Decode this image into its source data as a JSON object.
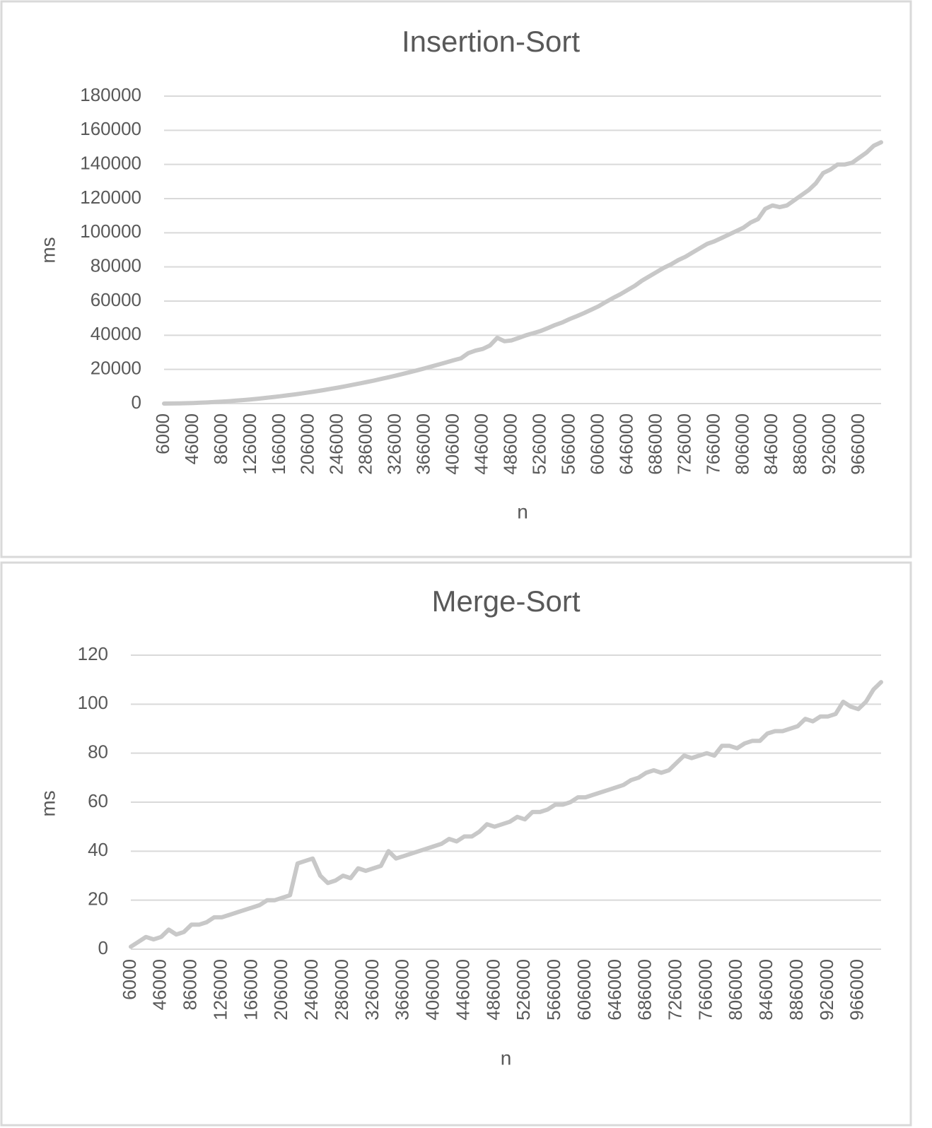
{
  "chart_data": [
    {
      "type": "line",
      "title": "Insertion-Sort",
      "x_label": "n",
      "y_label": "ms",
      "categories": [
        "6000",
        null,
        null,
        null,
        "46000",
        null,
        null,
        null,
        "86000",
        null,
        null,
        null,
        "126000",
        null,
        null,
        null,
        "166000",
        null,
        null,
        null,
        "206000",
        null,
        null,
        null,
        "246000",
        null,
        null,
        null,
        "286000",
        null,
        null,
        null,
        "326000",
        null,
        null,
        null,
        "366000",
        null,
        null,
        null,
        "406000",
        null,
        null,
        null,
        "446000",
        null,
        null,
        null,
        "486000",
        null,
        null,
        null,
        "526000",
        null,
        null,
        null,
        "566000",
        null,
        null,
        null,
        "606000",
        null,
        null,
        null,
        "646000",
        null,
        null,
        null,
        "686000",
        null,
        null,
        null,
        "726000",
        null,
        null,
        null,
        "766000",
        null,
        null,
        null,
        "806000",
        null,
        null,
        null,
        "846000",
        null,
        null,
        null,
        "886000",
        null,
        null,
        null,
        "926000",
        null,
        null,
        null,
        "966000",
        null,
        null,
        null
      ],
      "values": [
        0,
        40,
        100,
        200,
        330,
        480,
        670,
        890,
        1140,
        1420,
        1730,
        2070,
        2450,
        2850,
        3290,
        3750,
        4250,
        4780,
        5330,
        5920,
        6540,
        7190,
        7880,
        8590,
        9330,
        10110,
        10910,
        11750,
        12610,
        13510,
        14440,
        15400,
        16390,
        17410,
        18460,
        19540,
        20660,
        21800,
        22980,
        24180,
        25400,
        26500,
        29500,
        31000,
        32000,
        34000,
        38500,
        36500,
        37000,
        38500,
        40000,
        41200,
        42500,
        44200,
        46000,
        47500,
        49500,
        51200,
        53000,
        55000,
        57000,
        59500,
        61800,
        64000,
        66500,
        69000,
        72000,
        74500,
        77000,
        79500,
        81500,
        84000,
        86000,
        88500,
        91000,
        93500,
        95000,
        97000,
        99000,
        101000,
        103000,
        106000,
        108000,
        114000,
        116000,
        115000,
        116000,
        119000,
        122000,
        125000,
        129000,
        135000,
        137000,
        140000,
        140000,
        141000,
        144000,
        147000,
        151000,
        153000
      ],
      "color": "#c8c8c8",
      "ylim": [
        0,
        180000
      ],
      "yticks": [
        0,
        20000,
        40000,
        60000,
        80000,
        100000,
        120000,
        140000,
        160000,
        180000
      ],
      "grid": true
    },
    {
      "type": "line",
      "title": "Merge-Sort",
      "x_label": "n",
      "y_label": "ms",
      "categories": [
        "6000",
        null,
        null,
        null,
        "46000",
        null,
        null,
        null,
        "86000",
        null,
        null,
        null,
        "126000",
        null,
        null,
        null,
        "166000",
        null,
        null,
        null,
        "206000",
        null,
        null,
        null,
        "246000",
        null,
        null,
        null,
        "286000",
        null,
        null,
        null,
        "326000",
        null,
        null,
        null,
        "366000",
        null,
        null,
        null,
        "406000",
        null,
        null,
        null,
        "446000",
        null,
        null,
        null,
        "486000",
        null,
        null,
        null,
        "526000",
        null,
        null,
        null,
        "566000",
        null,
        null,
        null,
        "606000",
        null,
        null,
        null,
        "646000",
        null,
        null,
        null,
        "686000",
        null,
        null,
        null,
        "726000",
        null,
        null,
        null,
        "766000",
        null,
        null,
        null,
        "806000",
        null,
        null,
        null,
        "846000",
        null,
        null,
        null,
        "886000",
        null,
        null,
        null,
        "926000",
        null,
        null,
        null,
        "966000",
        null,
        null,
        null
      ],
      "values": [
        1,
        3,
        5,
        4,
        5,
        8,
        6,
        7,
        10,
        10,
        11,
        13,
        13,
        14,
        15,
        16,
        17,
        18,
        20,
        20,
        21,
        22,
        35,
        36,
        37,
        30,
        27,
        28,
        30,
        29,
        33,
        32,
        33,
        34,
        40,
        37,
        38,
        39,
        40,
        41,
        42,
        43,
        45,
        44,
        46,
        46,
        48,
        51,
        50,
        51,
        52,
        54,
        53,
        56,
        56,
        57,
        59,
        59,
        60,
        62,
        62,
        63,
        64,
        65,
        66,
        67,
        69,
        70,
        72,
        73,
        72,
        73,
        76,
        79,
        78,
        79,
        80,
        79,
        83,
        83,
        82,
        84,
        85,
        85,
        88,
        89,
        89,
        90,
        91,
        94,
        93,
        95,
        95,
        96,
        101,
        99,
        98,
        101,
        106,
        109
      ],
      "color": "#c8c8c8",
      "ylim": [
        0,
        120
      ],
      "yticks": [
        0,
        20,
        40,
        60,
        80,
        100,
        120
      ],
      "grid": true
    }
  ]
}
